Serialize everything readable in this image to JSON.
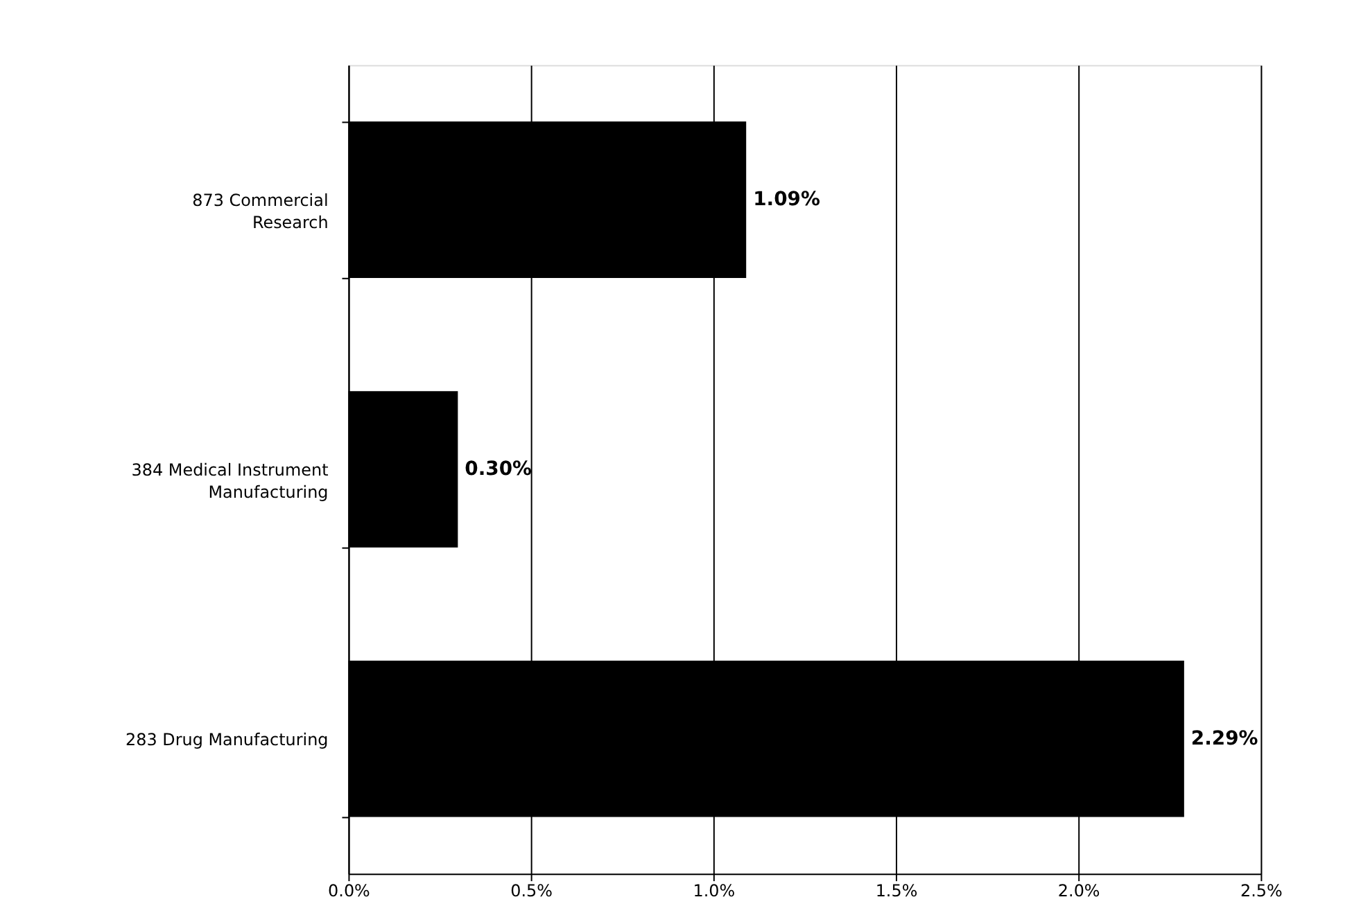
{
  "chart_data": {
    "type": "bar",
    "orientation": "horizontal",
    "categories": [
      "873 Commercial Research",
      "384 Medical Instrument Manufacturing",
      "283 Drug Manufacturing"
    ],
    "values": [
      1.09,
      0.3,
      2.29
    ],
    "value_labels": [
      "1.09%",
      "0.30%",
      "2.29%"
    ],
    "color": "#000000",
    "xlim": [
      0,
      2.5
    ],
    "xticks": [
      {
        "value": 0,
        "label": "0.0%"
      },
      {
        "value": 0.5,
        "label": "0.5%"
      },
      {
        "value": 1.0,
        "label": "1.0%"
      },
      {
        "value": 1.5,
        "label": "1.5%"
      },
      {
        "value": 2.0,
        "label": "2.0%"
      },
      {
        "value": 2.5,
        "label": "2.5%"
      }
    ],
    "grid": "x"
  }
}
